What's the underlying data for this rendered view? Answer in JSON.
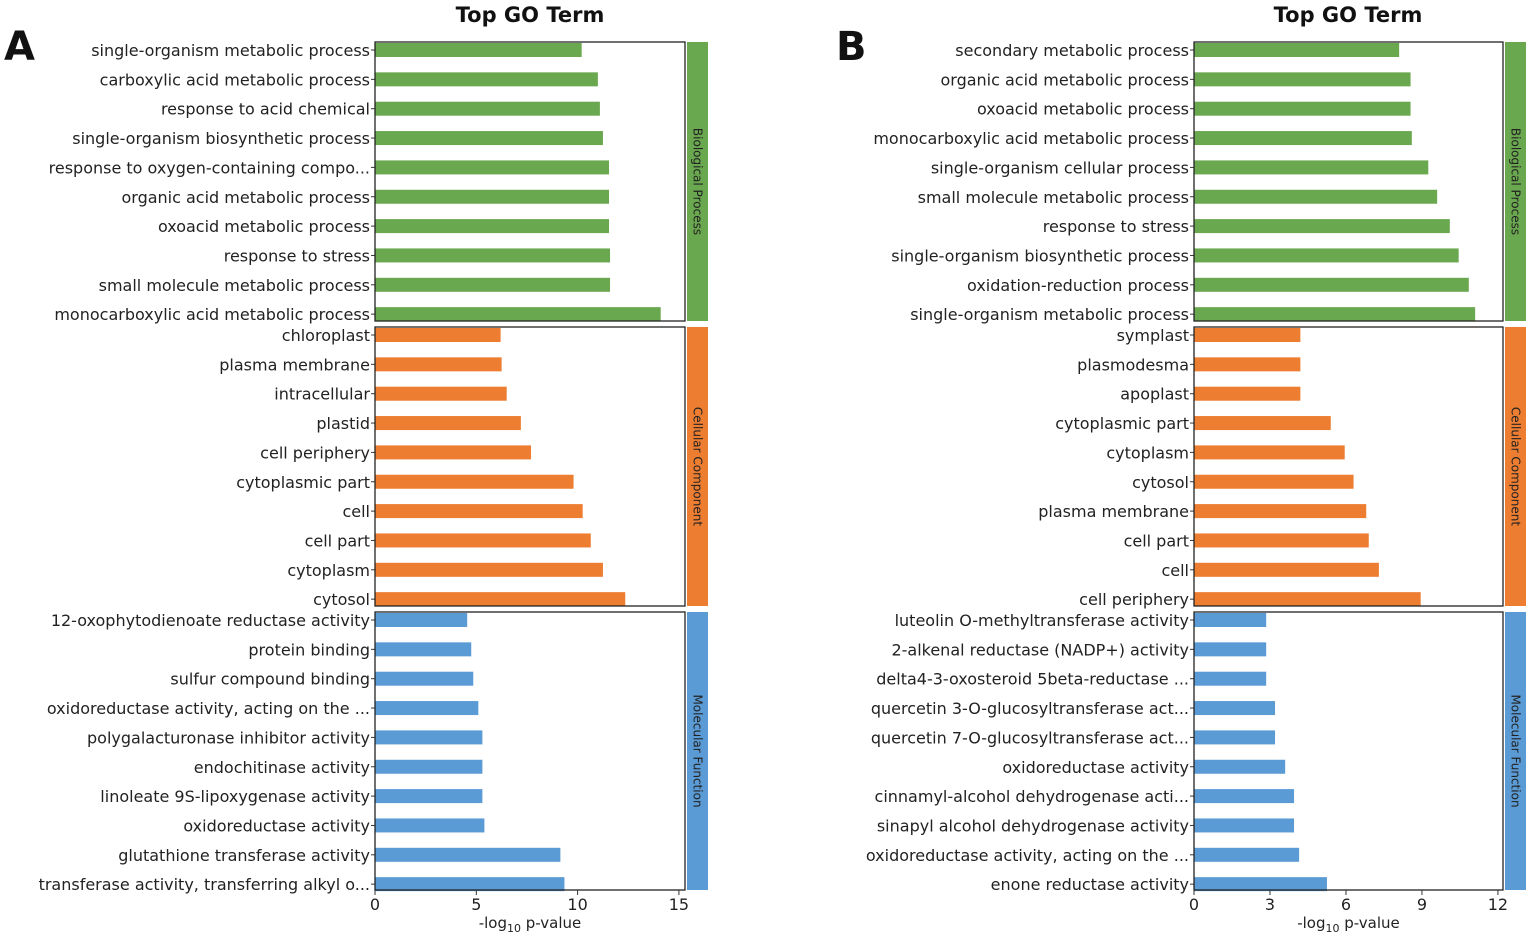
{
  "chart_data": [
    {
      "type": "bar",
      "orientation": "horizontal",
      "panel_label": "A",
      "title": "Top GO Term",
      "xlabel_prefix": "-log",
      "xlabel_sub": "10",
      "xlabel_suffix": " p-value",
      "xlim": [
        0,
        15.3
      ],
      "xticks": [
        0,
        5,
        10,
        15
      ],
      "facets": [
        {
          "name": "Biological Process",
          "color": "#6aa84f",
          "terms": [
            "single-organism metabolic process",
            "carboxylic acid metabolic process",
            "response to acid chemical",
            "single-organism biosynthetic process",
            "response to oxygen-containing compo...",
            "organic acid metabolic process",
            "oxoacid metabolic process",
            "response to stress",
            "small molecule metabolic process",
            "monocarboxylic acid metabolic process"
          ],
          "values": [
            10.2,
            11.0,
            11.1,
            11.25,
            11.55,
            11.55,
            11.55,
            11.6,
            11.6,
            14.1
          ]
        },
        {
          "name": "Cellular Component",
          "color": "#ed7d31",
          "terms": [
            "chloroplast",
            "plasma membrane",
            "intracellular",
            "plastid",
            "cell periphery",
            "cytoplasmic part",
            "cell",
            "cell part",
            "cytoplasm",
            "cytosol"
          ],
          "values": [
            6.2,
            6.25,
            6.5,
            7.2,
            7.7,
            9.8,
            10.25,
            10.65,
            11.25,
            12.35
          ]
        },
        {
          "name": "Molecular Function",
          "color": "#5b9bd5",
          "terms": [
            "12-oxophytodienoate reductase activity",
            "protein binding",
            "sulfur compound binding",
            "oxidoreductase activity, acting on the ...",
            "polygalacturonase inhibitor activity",
            "endochitinase activity",
            "linoleate 9S-lipoxygenase activity",
            "oxidoreductase activity",
            "glutathione transferase activity",
            "transferase activity, transferring alkyl o..."
          ],
          "values": [
            4.55,
            4.75,
            4.85,
            5.1,
            5.3,
            5.3,
            5.3,
            5.4,
            9.15,
            9.35
          ]
        }
      ]
    },
    {
      "type": "bar",
      "orientation": "horizontal",
      "panel_label": "B",
      "title": "Top GO Term",
      "xlabel_prefix": "-log",
      "xlabel_sub": "10",
      "xlabel_suffix": " p-value",
      "xlim": [
        0,
        12.2
      ],
      "xticks": [
        0,
        3,
        6,
        9,
        12
      ],
      "facets": [
        {
          "name": "Biological Process",
          "color": "#6aa84f",
          "terms": [
            "secondary metabolic process",
            "organic acid metabolic process",
            "oxoacid metabolic process",
            "monocarboxylic acid metabolic process",
            "single-organism cellular process",
            "small molecule metabolic process",
            "response to stress",
            "single-organism biosynthetic process",
            "oxidation-reduction process",
            "single-organism metabolic process"
          ],
          "values": [
            8.1,
            8.55,
            8.55,
            8.6,
            9.25,
            9.6,
            10.1,
            10.45,
            10.85,
            11.1
          ]
        },
        {
          "name": "Cellular Component",
          "color": "#ed7d31",
          "terms": [
            "symplast",
            "plasmodesma",
            "apoplast",
            "cytoplasmic part",
            "cytoplasm",
            "cytosol",
            "plasma membrane",
            "cell part",
            "cell",
            "cell periphery"
          ],
          "values": [
            4.2,
            4.2,
            4.2,
            5.4,
            5.95,
            6.3,
            6.8,
            6.9,
            7.3,
            8.95
          ]
        },
        {
          "name": "Molecular Function",
          "color": "#5b9bd5",
          "terms": [
            "luteolin O-methyltransferase activity",
            "2-alkenal reductase (NADP+) activity",
            "delta4-3-oxosteroid 5beta-reductase ...",
            "quercetin 3-O-glucosyltransferase act...",
            "quercetin 7-O-glucosyltransferase act...",
            "oxidoreductase activity",
            "cinnamyl-alcohol dehydrogenase acti...",
            "sinapyl alcohol dehydrogenase activity",
            "oxidoreductase activity, acting on the ...",
            "enone reductase activity"
          ],
          "values": [
            2.85,
            2.85,
            2.85,
            3.2,
            3.2,
            3.6,
            3.95,
            3.95,
            4.15,
            5.25
          ]
        }
      ]
    }
  ]
}
